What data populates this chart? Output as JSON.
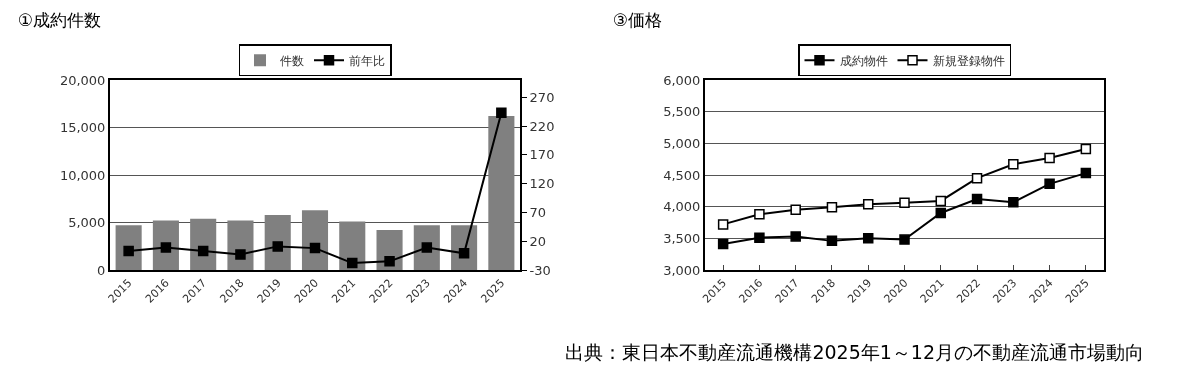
{
  "chart_data": [
    {
      "type": "bar",
      "title": "①成約件数",
      "categories": [
        "2015",
        "2016",
        "2017",
        "2018",
        "2019",
        "2020",
        "2021",
        "2022",
        "2023",
        "2024",
        "2025"
      ],
      "series": [
        {
          "name": "件数",
          "color": "#808080",
          "values": [
            4700,
            5200,
            5400,
            5200,
            5800,
            6300,
            5100,
            4200,
            4700,
            4700,
            16200
          ]
        },
        {
          "name": "前年比",
          "type": "line",
          "axis": "y2",
          "color": "#000000",
          "marker": "square",
          "values": [
            3,
            9,
            3,
            -3,
            11,
            8,
            -18,
            -15,
            9,
            -1,
            243
          ]
        }
      ],
      "ylim": [
        0,
        20000
      ],
      "yticks": [
        {
          "value": 0,
          "label": "0"
        },
        {
          "value": 5000,
          "label": "5,000"
        },
        {
          "value": 10000,
          "label": "10,000"
        },
        {
          "value": 15000,
          "label": "15,000"
        },
        {
          "value": 20000,
          "label": "20,000"
        }
      ],
      "y2lim": [
        -30,
        300
      ],
      "y2ticks": [
        -30,
        20,
        70,
        120,
        170,
        220,
        270
      ],
      "grid": "y",
      "legend": "top"
    },
    {
      "type": "line",
      "title": "③価格",
      "categories": [
        "2015",
        "2016",
        "2017",
        "2018",
        "2019",
        "2020",
        "2021",
        "2022",
        "2023",
        "2024",
        "2025"
      ],
      "series": [
        {
          "name": "成約物件",
          "color": "#000000",
          "marker": "square",
          "values": [
            3410,
            3510,
            3530,
            3460,
            3500,
            3480,
            3900,
            4120,
            4070,
            4360,
            4530
          ]
        },
        {
          "name": "新規登録物件",
          "color": "#ffffff",
          "marker": "square",
          "values": [
            3720,
            3880,
            3950,
            3990,
            4040,
            4060,
            4090,
            4450,
            4670,
            4770,
            4910
          ]
        }
      ],
      "ylim": [
        3000,
        6000
      ],
      "yticks": [
        {
          "value": 3000,
          "label": "3,000"
        },
        {
          "value": 3500,
          "label": "3,500"
        },
        {
          "value": 4000,
          "label": "4,000"
        },
        {
          "value": 4500,
          "label": "4,500"
        },
        {
          "value": 5000,
          "label": "5,000"
        },
        {
          "value": 5500,
          "label": "5,500"
        },
        {
          "value": 6000,
          "label": "6,000"
        }
      ],
      "grid": "y",
      "legend": "top",
      "annotations": [
        "出典：東日本不動産流通機構2025年1～12月の不動産流通市場動向"
      ]
    }
  ]
}
